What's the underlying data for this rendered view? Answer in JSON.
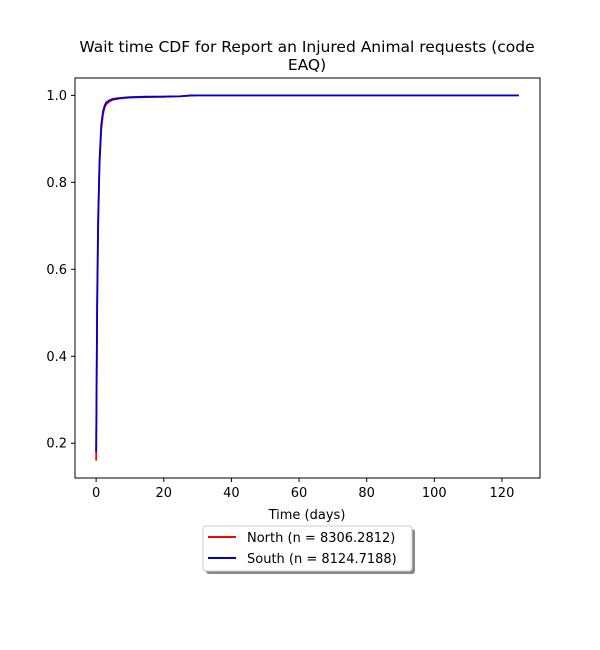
{
  "chart_data": {
    "type": "line",
    "title_lines": [
      "Wait time CDF for Report an Injured Animal  requests (code",
      "EAQ)"
    ],
    "xlabel": "Time (days)",
    "ylabel": "",
    "xlim": [
      -6.25,
      131.25
    ],
    "ylim": [
      0.12,
      1.04
    ],
    "xticks": [
      0,
      20,
      40,
      60,
      80,
      100,
      120
    ],
    "yticks": [
      0.2,
      0.4,
      0.6,
      0.8,
      1.0
    ],
    "xtick_labels": [
      "0",
      "20",
      "40",
      "60",
      "80",
      "100",
      "120"
    ],
    "ytick_labels": [
      "0.2",
      "0.4",
      "0.6",
      "0.8",
      "1.0"
    ],
    "grid": false,
    "legend_position": "below-center",
    "series": [
      {
        "name": "North (n = 8306.2812)",
        "color": "#ff0000",
        "x": [
          0,
          0.3,
          0.6,
          1,
          1.5,
          2,
          2.5,
          3,
          4,
          5,
          7,
          10,
          15,
          20,
          25,
          30,
          40,
          60,
          80,
          100,
          125
        ],
        "y": [
          0.16,
          0.5,
          0.7,
          0.84,
          0.92,
          0.955,
          0.972,
          0.98,
          0.986,
          0.99,
          0.993,
          0.995,
          0.996,
          0.997,
          0.998,
          1.0,
          1.0,
          1.0,
          1.0,
          1.0,
          1.0
        ]
      },
      {
        "name": "South (n = 8124.7188)",
        "color": "#0000cc",
        "x": [
          0,
          0.3,
          0.6,
          1,
          1.5,
          2,
          2.5,
          3,
          4,
          5,
          7,
          10,
          15,
          20,
          25,
          28,
          40,
          60,
          80,
          100,
          125
        ],
        "y": [
          0.18,
          0.53,
          0.72,
          0.85,
          0.93,
          0.962,
          0.976,
          0.984,
          0.989,
          0.992,
          0.994,
          0.996,
          0.997,
          0.997,
          0.998,
          1.0,
          1.0,
          1.0,
          1.0,
          1.0,
          1.0
        ]
      }
    ]
  }
}
